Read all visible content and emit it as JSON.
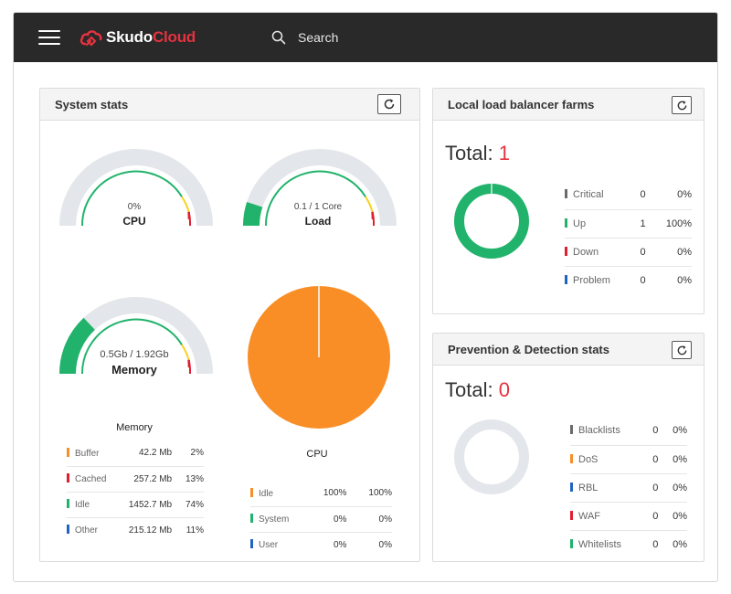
{
  "header": {
    "logo_part1": "Skudo",
    "logo_part2": "Cloud",
    "search_label": "Search"
  },
  "colors": {
    "topbar": "#292929",
    "brand_red": "#e5323f",
    "green": "#21b36b",
    "orange": "#f98e26",
    "yellow": "#f7d31b",
    "red": "#e01e2f",
    "blue": "#2163c1",
    "gray_mark": "#6b6b6b",
    "gauge_track": "#e3e6ea"
  },
  "system_stats": {
    "title": "System stats",
    "cpu_gauge": {
      "value_text": "0%",
      "label": "CPU",
      "level": 0
    },
    "load_gauge": {
      "value_text": "0.1 / 1 Core",
      "label": "Load",
      "level": 0.1
    },
    "memory_gauge": {
      "value_text": "0.5Gb / 1.92Gb",
      "label": "Memory",
      "level": 0.26
    },
    "memory_table": {
      "title": "Memory",
      "rows": [
        {
          "label": "Buffer",
          "value": "42.2 Mb",
          "percent": "2%",
          "color": "orange"
        },
        {
          "label": "Cached",
          "value": "257.2 Mb",
          "percent": "13%",
          "color": "red"
        },
        {
          "label": "Idle",
          "value": "1452.7 Mb",
          "percent": "74%",
          "color": "green"
        },
        {
          "label": "Other",
          "value": "215.12 Mb",
          "percent": "11%",
          "color": "blue"
        }
      ]
    },
    "cpu_pie": {
      "idle_percent": 100
    },
    "cpu_table": {
      "title": "CPU",
      "rows": [
        {
          "label": "Idle",
          "value": "100%",
          "percent": "100%",
          "color": "orange"
        },
        {
          "label": "System",
          "value": "0%",
          "percent": "0%",
          "color": "green"
        },
        {
          "label": "User",
          "value": "0%",
          "percent": "0%",
          "color": "blue"
        }
      ]
    }
  },
  "farms": {
    "title": "Local load balancer farms",
    "total_label": "Total:",
    "total_value": "1",
    "rows": [
      {
        "label": "Critical",
        "count": "0",
        "percent": "0%",
        "color": "gray"
      },
      {
        "label": "Up",
        "count": "1",
        "percent": "100%",
        "color": "green"
      },
      {
        "label": "Down",
        "count": "0",
        "percent": "0%",
        "color": "red"
      },
      {
        "label": "Problem",
        "count": "0",
        "percent": "0%",
        "color": "blue"
      }
    ]
  },
  "prevention": {
    "title": "Prevention & Detection stats",
    "total_label": "Total:",
    "total_value": "0",
    "rows": [
      {
        "label": "Blacklists",
        "count": "0",
        "percent": "0%",
        "color": "gray"
      },
      {
        "label": "DoS",
        "count": "0",
        "percent": "0%",
        "color": "orange"
      },
      {
        "label": "RBL",
        "count": "0",
        "percent": "0%",
        "color": "blue"
      },
      {
        "label": "WAF",
        "count": "0",
        "percent": "0%",
        "color": "red"
      },
      {
        "label": "Whitelists",
        "count": "0",
        "percent": "0%",
        "color": "green"
      }
    ]
  }
}
